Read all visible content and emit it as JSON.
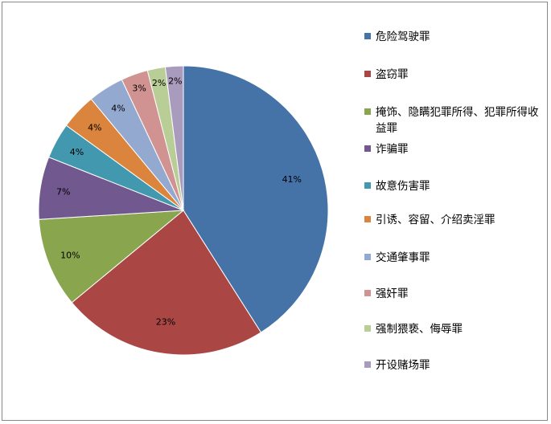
{
  "chart_data": {
    "type": "pie",
    "title": "",
    "legend_position": "right",
    "categories": [
      "危险驾驶罪",
      "盗窃罪",
      "掩饰、隐瞒犯罪所得、犯罪所得收益罪",
      "诈骗罪",
      "故意伤害罪",
      "引诱、容留、介绍卖淫罪",
      "交通肇事罪",
      "强奸罪",
      "强制猥亵、侮辱罪",
      "开设赌场罪"
    ],
    "values": [
      41,
      23,
      10,
      7,
      4,
      4,
      4,
      3,
      2,
      2
    ],
    "data_labels": [
      "41%",
      "23%",
      "10%",
      "7%",
      "4%",
      "4%",
      "4%",
      "3%",
      "2%",
      "2%"
    ],
    "colors": [
      "#4572A7",
      "#AA4643",
      "#89A54E",
      "#71588F",
      "#4198AF",
      "#DB843D",
      "#93A9CF",
      "#D19392",
      "#B9CD96",
      "#A99BBD"
    ]
  }
}
